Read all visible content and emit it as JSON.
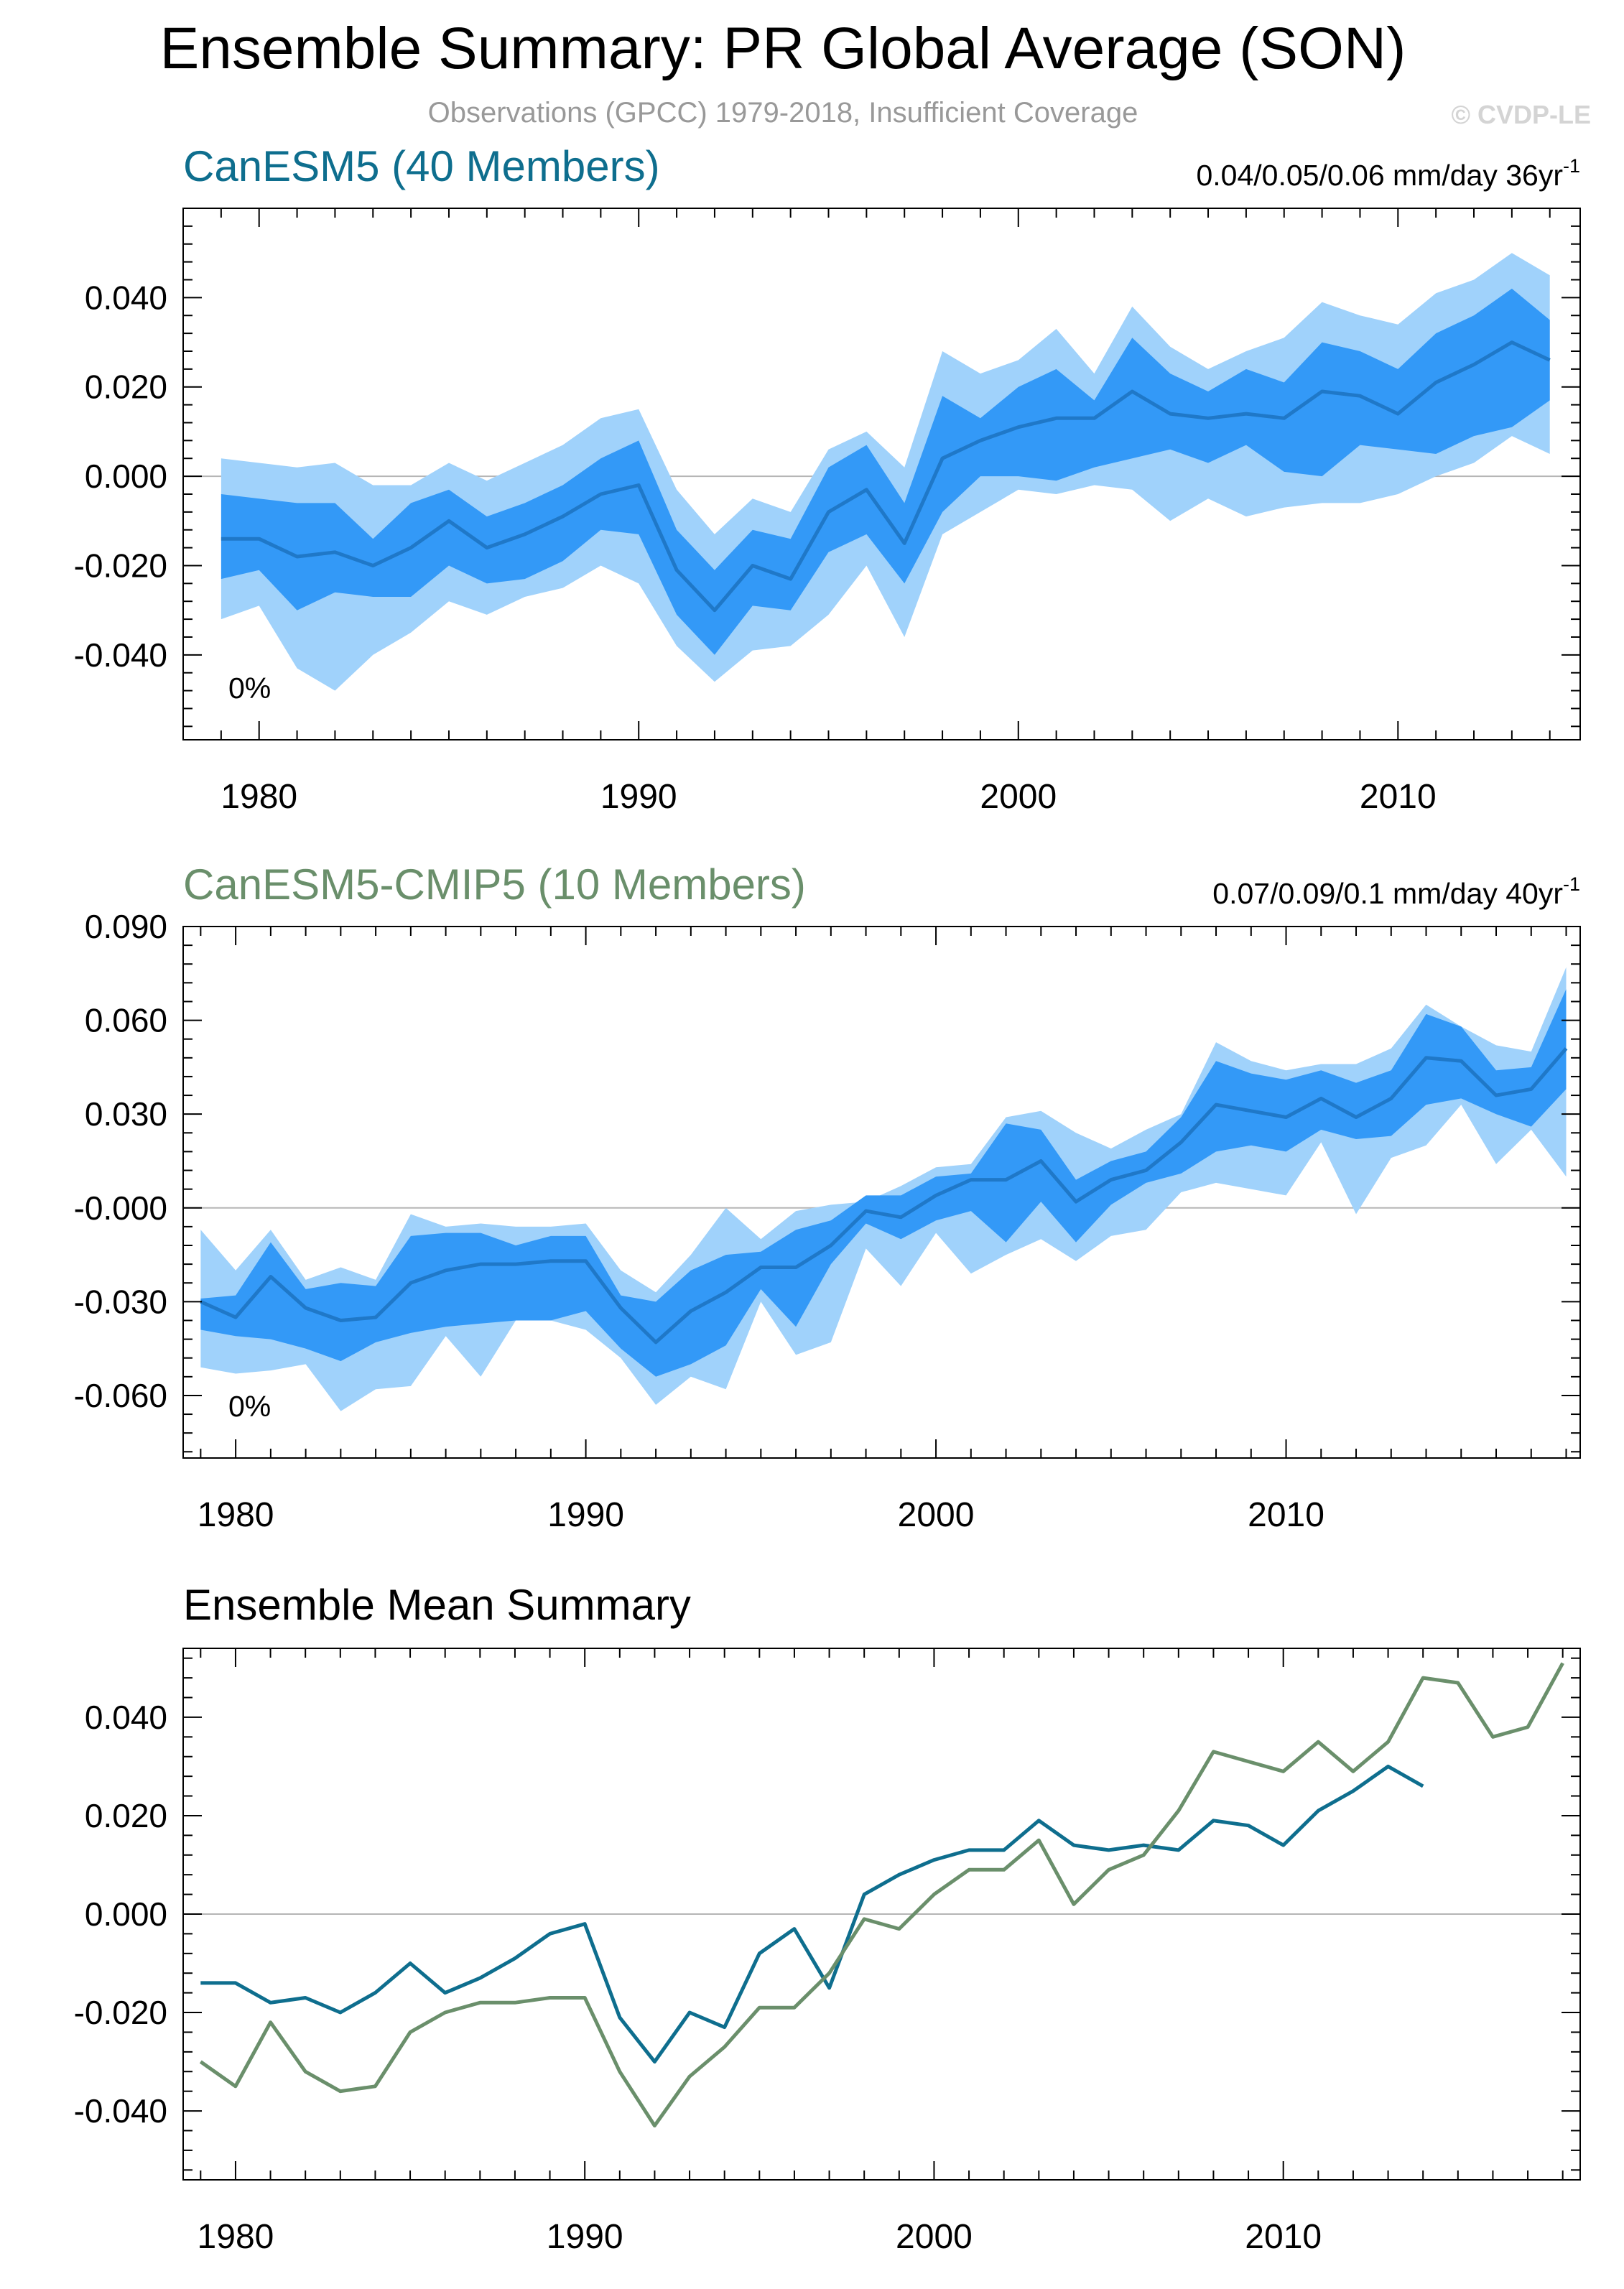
{
  "title": "Ensemble Summary: PR Global Average (SON)",
  "subtitle": "Observations (GPCC) 1979-2018, Insufficient Coverage",
  "watermark": "© CVDP-LE",
  "colors": {
    "canesm5": "#0e6e8e",
    "cmip5": "#6a8f6b",
    "band_outer": "#a0d2fb",
    "band_inner": "#3399f7",
    "mean_line": "#1f78c8"
  },
  "chart_data": [
    {
      "type": "area",
      "title": "CanESM5 (40 Members)",
      "trend": "0.04/0.05/0.06 mm/day 36yr",
      "trend_sup": "-1",
      "percent": "0%",
      "xlabel": "",
      "ylabel": "",
      "xlim": [
        1978.0,
        2014.8
      ],
      "ylim": [
        -0.059,
        0.06
      ],
      "xticks": [
        "1980",
        "1990",
        "2000",
        "2010"
      ],
      "yticks": [
        "0.040",
        "0.020",
        "0.000",
        "-0.020",
        "-0.040"
      ],
      "x": [
        1979,
        1980,
        1981,
        1982,
        1983,
        1984,
        1985,
        1986,
        1987,
        1988,
        1989,
        1990,
        1991,
        1992,
        1993,
        1994,
        1995,
        1996,
        1997,
        1998,
        1999,
        2000,
        2001,
        2002,
        2003,
        2004,
        2005,
        2006,
        2007,
        2008,
        2009,
        2010,
        2011,
        2012,
        2013,
        2014
      ],
      "series": [
        {
          "name": "min",
          "values": [
            -0.032,
            -0.029,
            -0.043,
            -0.048,
            -0.04,
            -0.035,
            -0.028,
            -0.031,
            -0.027,
            -0.025,
            -0.02,
            -0.024,
            -0.038,
            -0.046,
            -0.039,
            -0.038,
            -0.031,
            -0.02,
            -0.036,
            -0.013,
            -0.008,
            -0.003,
            -0.004,
            -0.002,
            -0.003,
            -0.01,
            -0.005,
            -0.009,
            -0.007,
            -0.006,
            -0.006,
            -0.004,
            0.0,
            0.003,
            0.009,
            0.005
          ]
        },
        {
          "name": "p10",
          "values": [
            -0.023,
            -0.021,
            -0.03,
            -0.026,
            -0.027,
            -0.027,
            -0.02,
            -0.024,
            -0.023,
            -0.019,
            -0.012,
            -0.013,
            -0.031,
            -0.04,
            -0.029,
            -0.03,
            -0.017,
            -0.013,
            -0.024,
            -0.008,
            0.0,
            0.0,
            -0.001,
            0.002,
            0.004,
            0.006,
            0.003,
            0.007,
            0.001,
            0.0,
            0.007,
            0.006,
            0.005,
            0.009,
            0.011,
            0.017
          ]
        },
        {
          "name": "mean",
          "values": [
            -0.014,
            -0.014,
            -0.018,
            -0.017,
            -0.02,
            -0.016,
            -0.01,
            -0.016,
            -0.013,
            -0.009,
            -0.004,
            -0.002,
            -0.021,
            -0.03,
            -0.02,
            -0.023,
            -0.008,
            -0.003,
            -0.015,
            0.004,
            0.008,
            0.011,
            0.013,
            0.013,
            0.019,
            0.014,
            0.013,
            0.014,
            0.013,
            0.019,
            0.018,
            0.014,
            0.021,
            0.025,
            0.03,
            0.026
          ]
        },
        {
          "name": "p90",
          "values": [
            -0.004,
            -0.005,
            -0.006,
            -0.006,
            -0.014,
            -0.006,
            -0.003,
            -0.009,
            -0.006,
            -0.002,
            0.004,
            0.008,
            -0.012,
            -0.021,
            -0.012,
            -0.014,
            0.002,
            0.007,
            -0.006,
            0.018,
            0.013,
            0.02,
            0.024,
            0.017,
            0.031,
            0.023,
            0.019,
            0.024,
            0.021,
            0.03,
            0.028,
            0.024,
            0.032,
            0.036,
            0.042,
            0.035
          ]
        },
        {
          "name": "max",
          "values": [
            0.004,
            0.003,
            0.002,
            0.003,
            -0.002,
            -0.002,
            0.003,
            -0.001,
            0.003,
            0.007,
            0.013,
            0.015,
            -0.003,
            -0.013,
            -0.005,
            -0.008,
            0.006,
            0.01,
            0.002,
            0.028,
            0.023,
            0.026,
            0.033,
            0.023,
            0.038,
            0.029,
            0.024,
            0.028,
            0.031,
            0.039,
            0.036,
            0.034,
            0.041,
            0.044,
            0.05,
            0.045
          ]
        }
      ]
    },
    {
      "type": "area",
      "title": "CanESM5-CMIP5 (10 Members)",
      "trend": "0.07/0.09/0.1 mm/day 40yr",
      "trend_sup": "-1",
      "percent": "0%",
      "xlabel": "",
      "ylabel": "",
      "xlim": [
        1978.5,
        2018.4
      ],
      "ylim": [
        -0.08,
        0.09
      ],
      "xticks": [
        "1980",
        "1990",
        "2000",
        "2010"
      ],
      "yticks": [
        "0.090",
        "0.060",
        "0.030",
        "-0.000",
        "-0.030",
        "-0.060"
      ],
      "x": [
        1979,
        1980,
        1981,
        1982,
        1983,
        1984,
        1985,
        1986,
        1987,
        1988,
        1989,
        1990,
        1991,
        1992,
        1993,
        1994,
        1995,
        1996,
        1997,
        1998,
        1999,
        2000,
        2001,
        2002,
        2003,
        2004,
        2005,
        2006,
        2007,
        2008,
        2009,
        2010,
        2011,
        2012,
        2013,
        2014,
        2015,
        2016,
        2017,
        2018
      ],
      "series": [
        {
          "name": "min",
          "values": [
            -0.051,
            -0.053,
            -0.052,
            -0.05,
            -0.065,
            -0.058,
            -0.057,
            -0.041,
            -0.054,
            -0.036,
            -0.036,
            -0.039,
            -0.048,
            -0.063,
            -0.054,
            -0.058,
            -0.03,
            -0.047,
            -0.043,
            -0.013,
            -0.025,
            -0.008,
            -0.021,
            -0.015,
            -0.01,
            -0.017,
            -0.009,
            -0.007,
            0.005,
            0.008,
            0.006,
            0.004,
            0.021,
            -0.002,
            0.016,
            0.02,
            0.033,
            0.014,
            0.025,
            0.01
          ]
        },
        {
          "name": "p10",
          "values": [
            -0.039,
            -0.041,
            -0.042,
            -0.045,
            -0.049,
            -0.043,
            -0.04,
            -0.038,
            -0.037,
            -0.036,
            -0.036,
            -0.033,
            -0.045,
            -0.054,
            -0.05,
            -0.044,
            -0.026,
            -0.038,
            -0.018,
            -0.005,
            -0.01,
            -0.004,
            -0.001,
            -0.011,
            0.002,
            -0.011,
            0.001,
            0.008,
            0.011,
            0.018,
            0.02,
            0.018,
            0.025,
            0.022,
            0.023,
            0.033,
            0.035,
            0.03,
            0.026,
            0.038
          ]
        },
        {
          "name": "mean",
          "values": [
            -0.03,
            -0.035,
            -0.022,
            -0.032,
            -0.036,
            -0.035,
            -0.024,
            -0.02,
            -0.018,
            -0.018,
            -0.017,
            -0.017,
            -0.032,
            -0.043,
            -0.033,
            -0.027,
            -0.019,
            -0.019,
            -0.012,
            -0.001,
            -0.003,
            0.004,
            0.009,
            0.009,
            0.015,
            0.002,
            0.009,
            0.012,
            0.021,
            0.033,
            0.031,
            0.029,
            0.035,
            0.029,
            0.035,
            0.048,
            0.047,
            0.036,
            0.038,
            0.051
          ]
        },
        {
          "name": "p90",
          "values": [
            -0.029,
            -0.028,
            -0.011,
            -0.026,
            -0.024,
            -0.025,
            -0.009,
            -0.008,
            -0.008,
            -0.012,
            -0.009,
            -0.009,
            -0.028,
            -0.03,
            -0.02,
            -0.015,
            -0.014,
            -0.007,
            -0.004,
            0.004,
            0.004,
            0.01,
            0.011,
            0.027,
            0.025,
            0.009,
            0.015,
            0.018,
            0.029,
            0.047,
            0.043,
            0.041,
            0.044,
            0.04,
            0.044,
            0.062,
            0.058,
            0.044,
            0.045,
            0.07
          ]
        },
        {
          "name": "max",
          "values": [
            -0.007,
            -0.02,
            -0.007,
            -0.023,
            -0.019,
            -0.023,
            -0.002,
            -0.006,
            -0.005,
            -0.006,
            -0.006,
            -0.005,
            -0.02,
            -0.027,
            -0.015,
            0.0,
            -0.01,
            -0.001,
            0.001,
            0.002,
            0.007,
            0.013,
            0.014,
            0.029,
            0.031,
            0.024,
            0.019,
            0.025,
            0.03,
            0.053,
            0.047,
            0.044,
            0.046,
            0.046,
            0.051,
            0.065,
            0.058,
            0.052,
            0.05,
            0.077
          ]
        }
      ]
    },
    {
      "type": "line",
      "title": "Ensemble Mean Summary",
      "xlabel": "",
      "ylabel": "",
      "xlim": [
        1978.5,
        2018.5
      ],
      "ylim": [
        -0.054,
        0.054
      ],
      "xticks": [
        "1980",
        "1990",
        "2000",
        "2010"
      ],
      "yticks": [
        "0.040",
        "0.020",
        "0.000",
        "-0.020",
        "-0.040"
      ],
      "series": [
        {
          "name": "CanESM5",
          "color": "#0e6e8e",
          "x_start": 1979,
          "values": [
            -0.014,
            -0.014,
            -0.018,
            -0.017,
            -0.02,
            -0.016,
            -0.01,
            -0.016,
            -0.013,
            -0.009,
            -0.004,
            -0.002,
            -0.021,
            -0.03,
            -0.02,
            -0.023,
            -0.008,
            -0.003,
            -0.015,
            0.004,
            0.008,
            0.011,
            0.013,
            0.013,
            0.019,
            0.014,
            0.013,
            0.014,
            0.013,
            0.019,
            0.018,
            0.014,
            0.021,
            0.025,
            0.03,
            0.026
          ]
        },
        {
          "name": "CanESM5-CMIP5",
          "color": "#6a8f6b",
          "x_start": 1979,
          "values": [
            -0.03,
            -0.035,
            -0.022,
            -0.032,
            -0.036,
            -0.035,
            -0.024,
            -0.02,
            -0.018,
            -0.018,
            -0.017,
            -0.017,
            -0.032,
            -0.043,
            -0.033,
            -0.027,
            -0.019,
            -0.019,
            -0.012,
            -0.001,
            -0.003,
            0.004,
            0.009,
            0.009,
            0.015,
            0.002,
            0.009,
            0.012,
            0.021,
            0.033,
            0.031,
            0.029,
            0.035,
            0.029,
            0.035,
            0.048,
            0.047,
            0.036,
            0.038,
            0.051
          ]
        }
      ]
    }
  ]
}
